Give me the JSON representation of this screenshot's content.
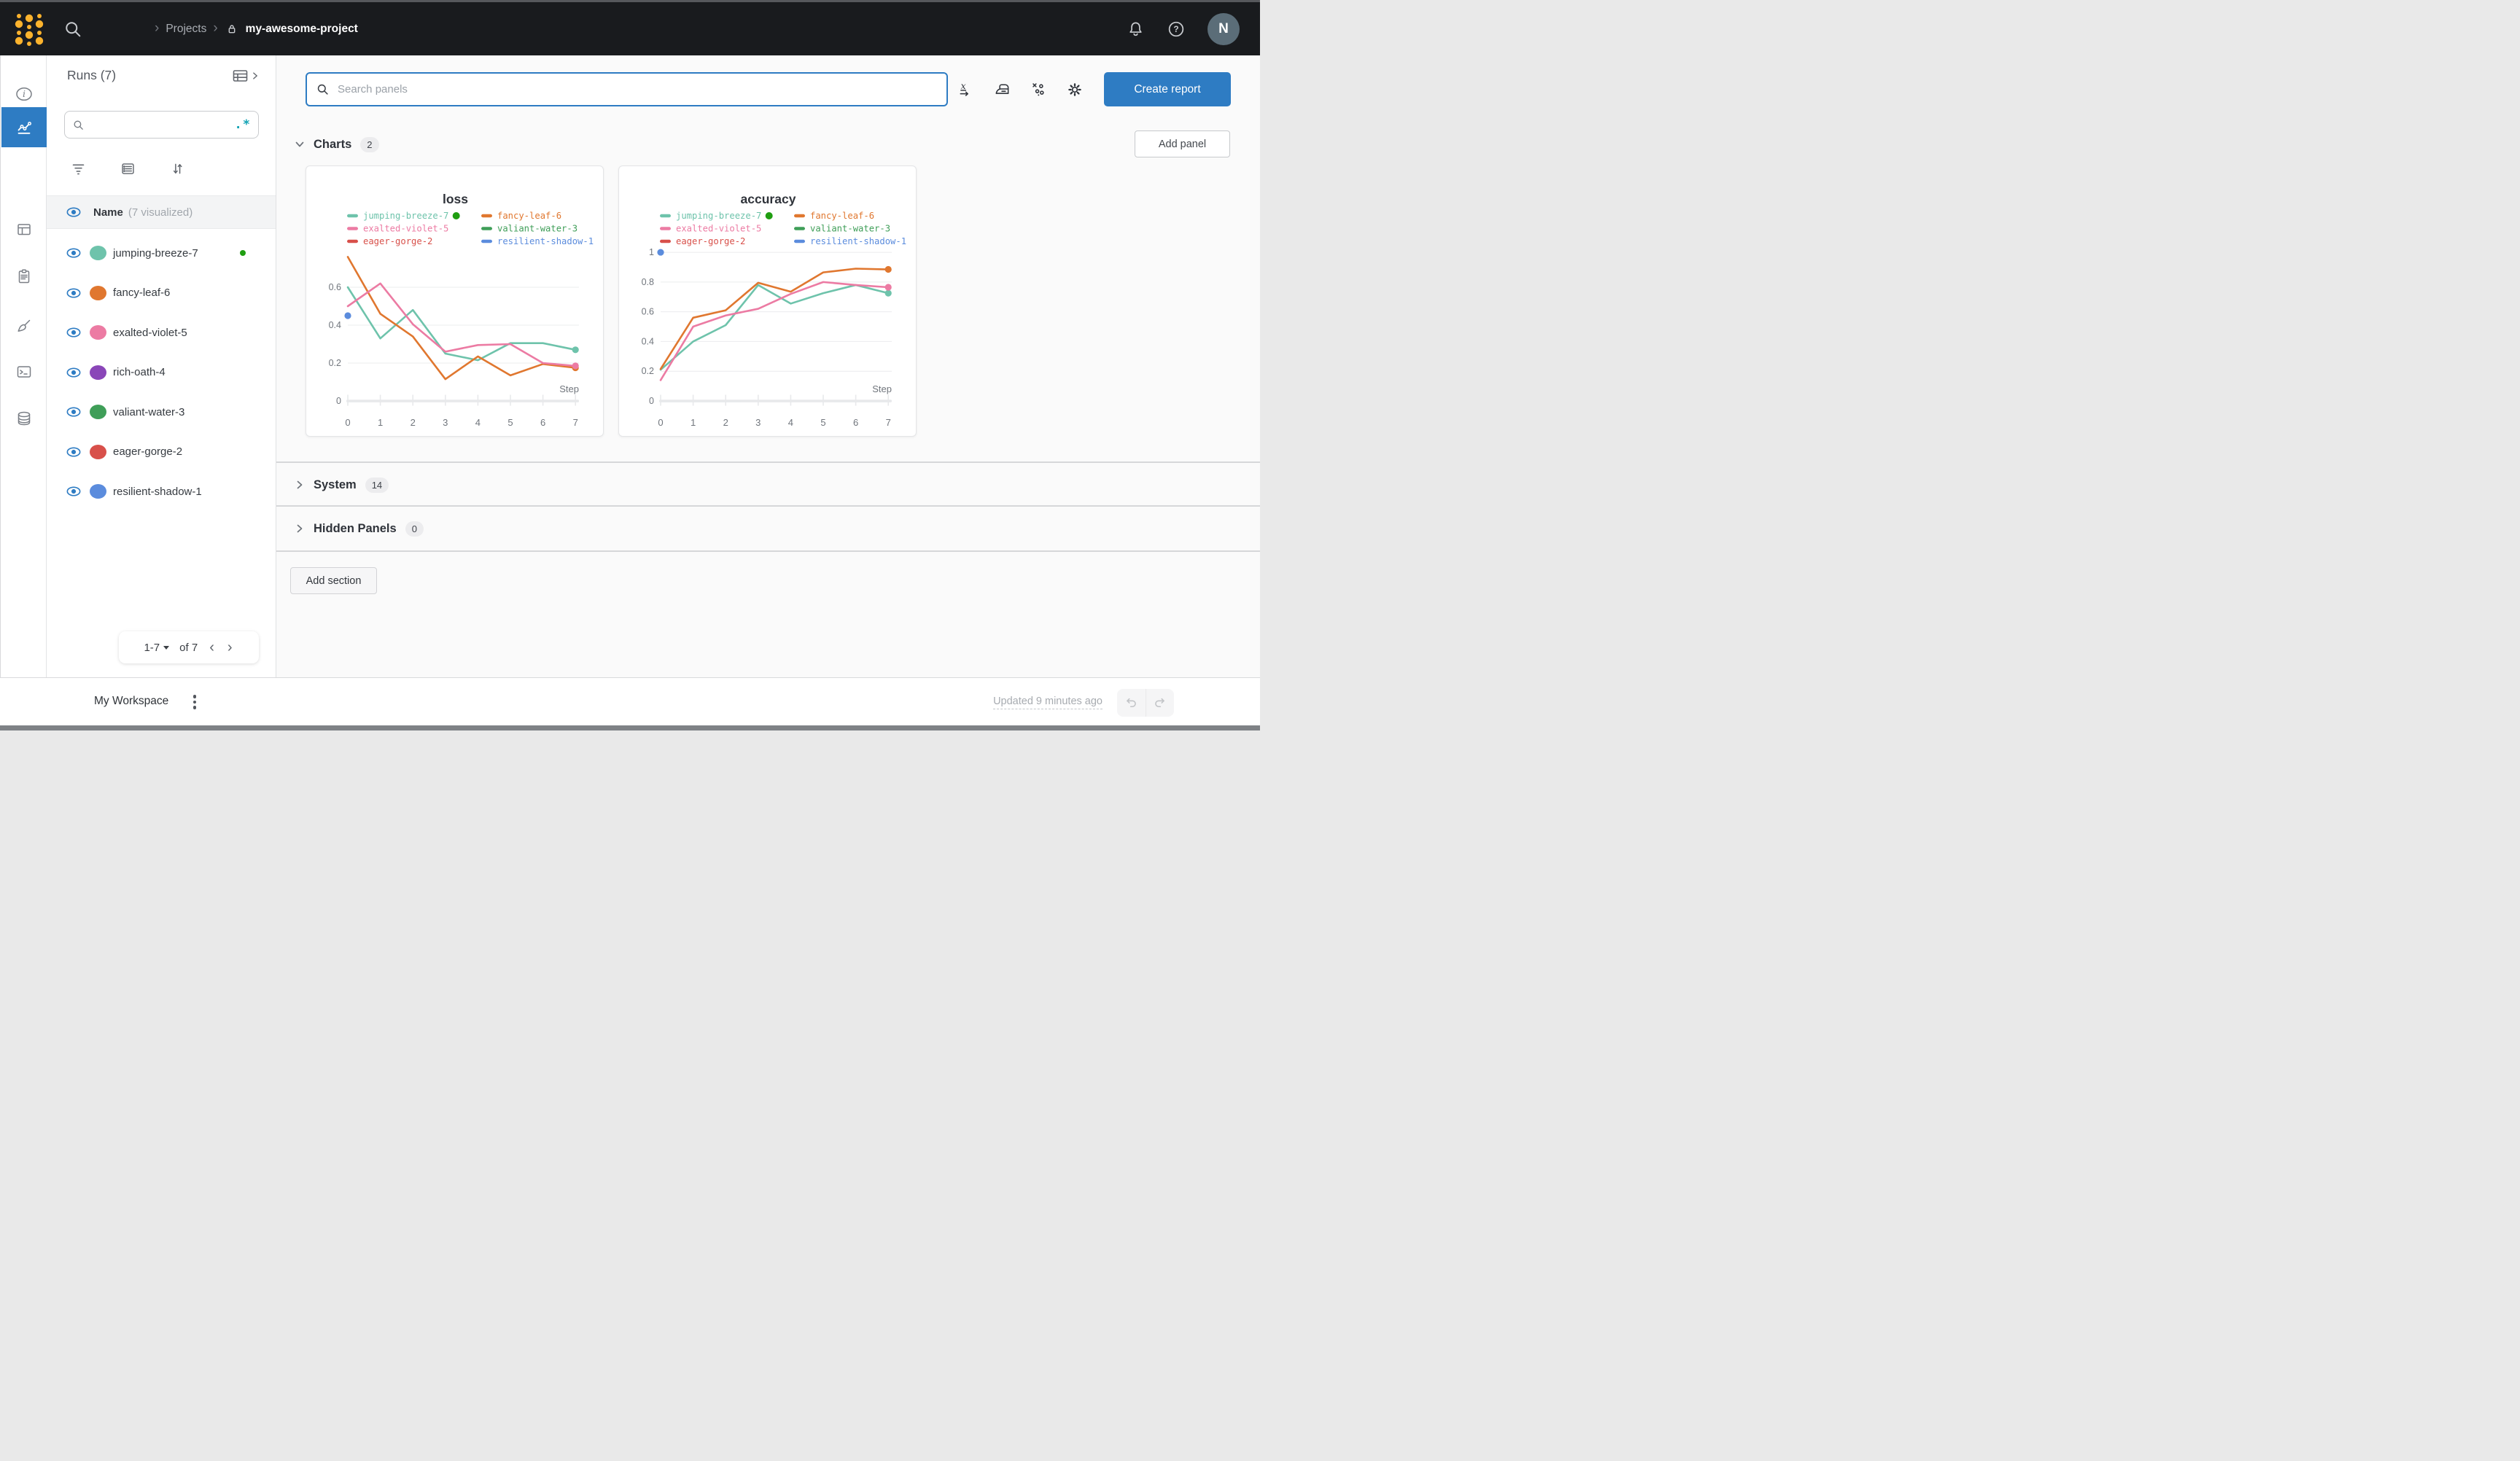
{
  "topbar": {
    "breadcrumb": {
      "chevron": "›",
      "section": "Projects",
      "project": "my-awesome-project"
    },
    "avatar_initial": "N"
  },
  "sidebar": {
    "title": "Runs (7)",
    "regex_label": ".*",
    "search_value": "",
    "header": {
      "name": "Name",
      "visualized": "(7 visualized)"
    },
    "runs": [
      {
        "name": "jumping-breeze-7",
        "color": "#6ec3ab",
        "running": true
      },
      {
        "name": "fancy-leaf-6",
        "color": "#e0772f",
        "running": false
      },
      {
        "name": "exalted-violet-5",
        "color": "#ec7ba3",
        "running": false
      },
      {
        "name": "rich-oath-4",
        "color": "#8a46b8",
        "running": false
      },
      {
        "name": "valiant-water-3",
        "color": "#3f9e58",
        "running": false
      },
      {
        "name": "eager-gorge-2",
        "color": "#d8504a",
        "running": false
      },
      {
        "name": "resilient-shadow-1",
        "color": "#5b8cdd",
        "running": false
      }
    ],
    "pagination": {
      "range": "1-7",
      "of": "of 7",
      "prev": "‹",
      "next": "›"
    }
  },
  "toolbar": {
    "search_placeholder": "Search panels",
    "create_report_label": "Create report"
  },
  "sections": {
    "charts": {
      "label": "Charts",
      "count": "2",
      "add_panel_label": "Add panel"
    },
    "system": {
      "label": "System",
      "count": "14"
    },
    "hidden": {
      "label": "Hidden Panels",
      "count": "0"
    },
    "add_section_label": "Add section"
  },
  "footer": {
    "workspace": "My Workspace",
    "updated": "Updated 9 minutes ago"
  },
  "colors": {
    "accent_blue": "#2e7cc3",
    "running_green": "#1f9e11",
    "regex_teal": "#12a3b4",
    "topbar_bg": "#191b1e",
    "logo_yellow": "#fcb32d"
  },
  "chart_data": [
    {
      "type": "line",
      "title": "loss",
      "xlabel": "Step",
      "x": [
        0,
        1,
        2,
        3,
        4,
        5,
        6,
        7
      ],
      "xlim": [
        0,
        7
      ],
      "ylim": [
        0,
        0.8
      ],
      "yticks": [
        0,
        0.2,
        0.4,
        0.6
      ],
      "grid": true,
      "legend_position": "top",
      "series": [
        {
          "name": "jumping-breeze-7",
          "values": [
            0.6,
            0.33,
            0.48,
            0.25,
            0.215,
            0.305,
            0.305,
            0.27
          ]
        },
        {
          "name": "fancy-leaf-6",
          "values": [
            0.76,
            0.46,
            0.34,
            0.115,
            0.235,
            0.135,
            0.195,
            0.175
          ]
        },
        {
          "name": "exalted-violet-5",
          "values": [
            0.5,
            0.62,
            0.405,
            0.26,
            0.295,
            0.3,
            0.2,
            0.185
          ]
        },
        {
          "name": "valiant-water-3",
          "values": []
        },
        {
          "name": "eager-gorge-2",
          "values": []
        },
        {
          "name": "resilient-shadow-1",
          "values": [
            0.45
          ]
        }
      ]
    },
    {
      "type": "line",
      "title": "accuracy",
      "xlabel": "Step",
      "x": [
        0,
        1,
        2,
        3,
        4,
        5,
        6,
        7
      ],
      "xlim": [
        0,
        7
      ],
      "ylim": [
        0,
        1.02
      ],
      "yticks": [
        0,
        0.2,
        0.4,
        0.6,
        0.8,
        1
      ],
      "grid": true,
      "legend_position": "top",
      "series": [
        {
          "name": "jumping-breeze-7",
          "values": [
            0.21,
            0.4,
            0.51,
            0.78,
            0.655,
            0.725,
            0.78,
            0.725
          ]
        },
        {
          "name": "fancy-leaf-6",
          "values": [
            0.215,
            0.56,
            0.61,
            0.795,
            0.735,
            0.865,
            0.89,
            0.885
          ]
        },
        {
          "name": "exalted-violet-5",
          "values": [
            0.14,
            0.5,
            0.575,
            0.62,
            0.72,
            0.8,
            0.78,
            0.765
          ]
        },
        {
          "name": "valiant-water-3",
          "values": []
        },
        {
          "name": "eager-gorge-2",
          "values": []
        },
        {
          "name": "resilient-shadow-1",
          "values": [
            1.0
          ]
        }
      ]
    }
  ]
}
